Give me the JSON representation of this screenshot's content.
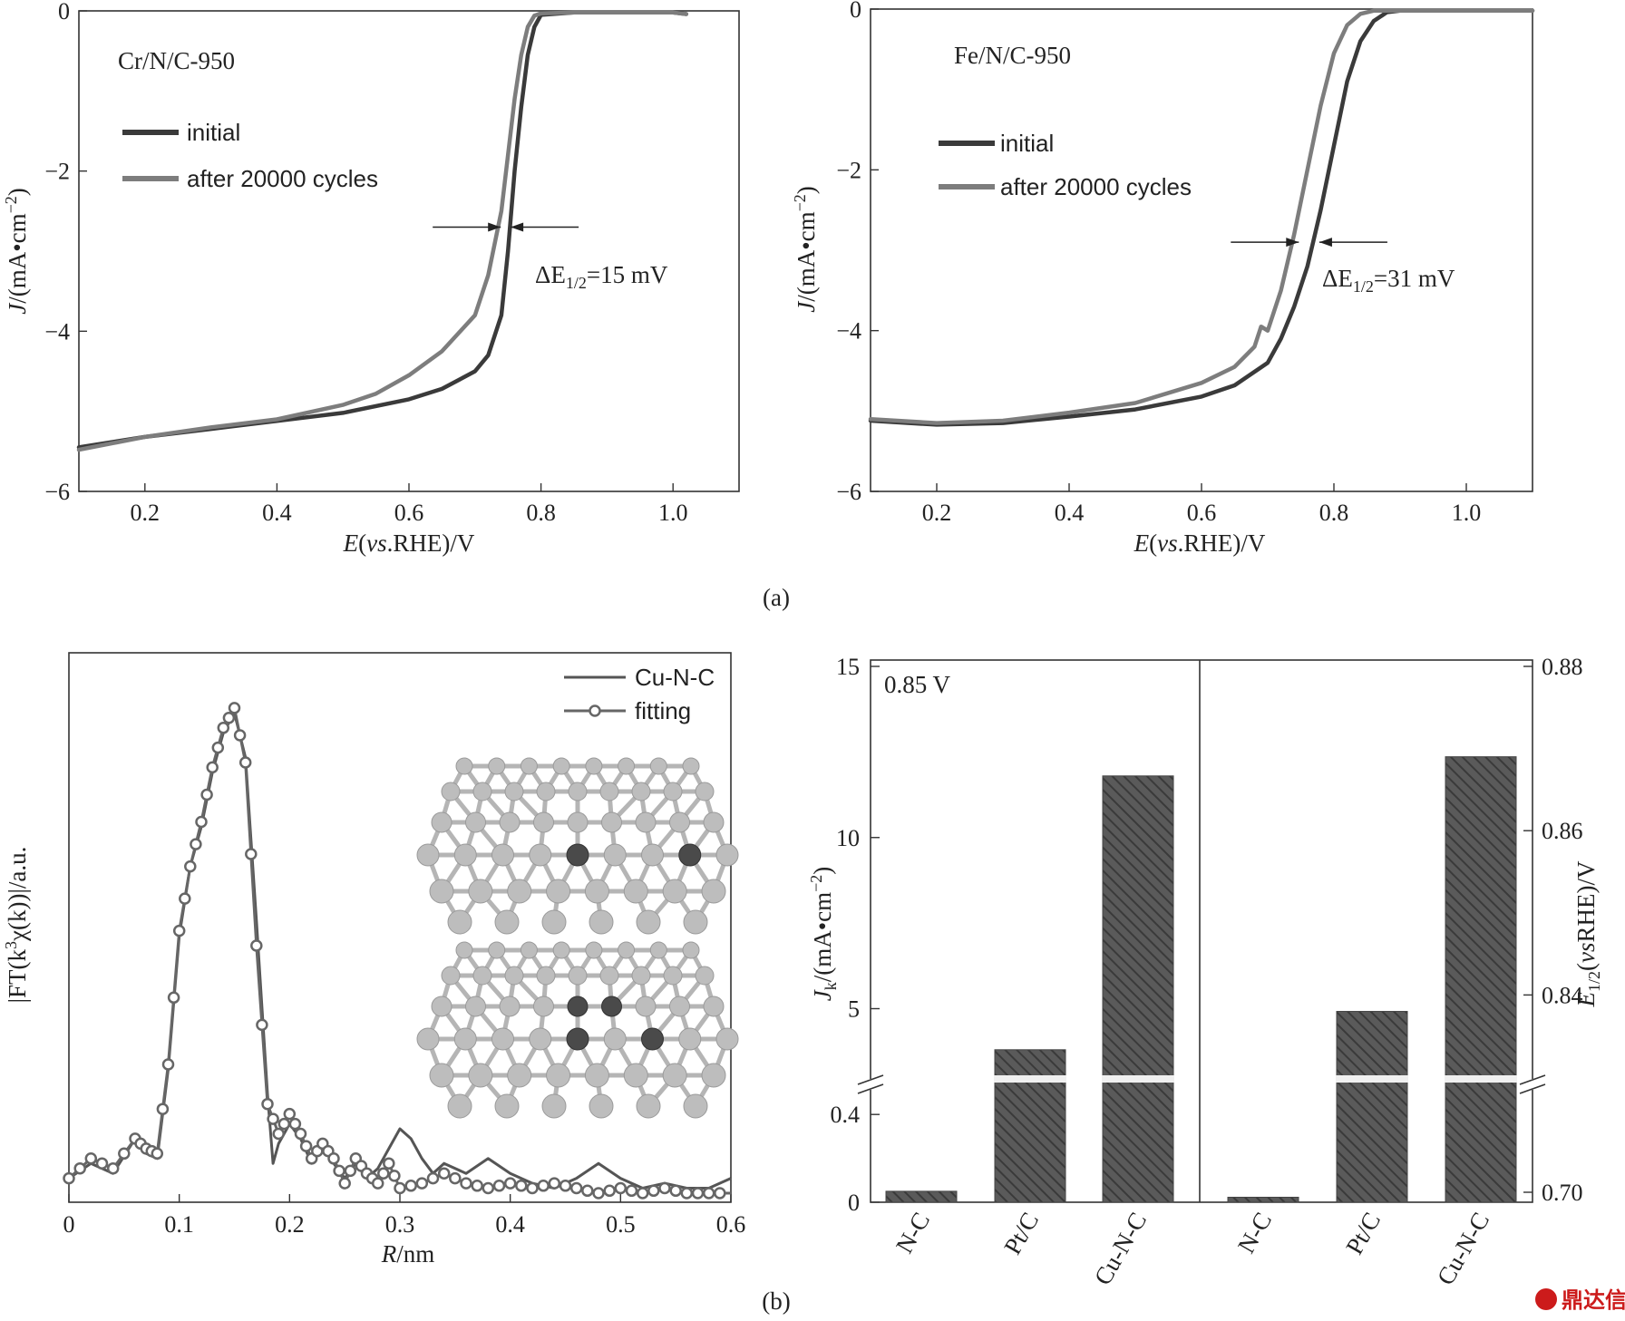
{
  "panel_labels": {
    "a": "(a)",
    "b": "(b)"
  },
  "watermark": "鼎达信",
  "chart_data": [
    {
      "type": "line",
      "panel": "a-left",
      "annotation_sample": "Cr/N/C-950",
      "xlabel_pre": "E",
      "xlabel_ital": "vs",
      "xlabel_post": ".RHE)/V",
      "ylabel_pre": "J",
      "ylabel_post": "/(mA•cm",
      "ylabel_sup": "−2",
      "xlim": [
        0.1,
        1.1
      ],
      "ylim": [
        -6,
        0
      ],
      "xticks": [
        0.2,
        0.4,
        0.6,
        0.8,
        1.0
      ],
      "xtick_labels": [
        "0.2",
        "0.4",
        "0.6",
        "0.8",
        "1.0"
      ],
      "yticks": [
        0,
        -2,
        -4,
        -6
      ],
      "ytick_labels": [
        "0",
        "−2",
        "−4",
        "−6"
      ],
      "legend": [
        "initial",
        "after 20000 cycles"
      ],
      "delta_label_pre": "ΔE",
      "delta_sub": "1/2",
      "delta_label_post": "=15 mV",
      "delta_arrow": {
        "y": -2.7,
        "x1": 0.739,
        "x2": 0.754
      },
      "series": [
        {
          "name": "initial",
          "color": "#3a3a3a",
          "x": [
            0.1,
            0.2,
            0.3,
            0.4,
            0.5,
            0.6,
            0.65,
            0.7,
            0.72,
            0.74,
            0.75,
            0.76,
            0.77,
            0.78,
            0.79,
            0.8,
            0.85,
            0.9,
            1.0,
            1.02
          ],
          "y": [
            -5.45,
            -5.32,
            -5.22,
            -5.12,
            -5.02,
            -4.85,
            -4.72,
            -4.5,
            -4.3,
            -3.8,
            -3.0,
            -2.0,
            -1.2,
            -0.55,
            -0.2,
            -0.05,
            -0.02,
            -0.02,
            -0.02,
            -0.04
          ]
        },
        {
          "name": "after 20000 cycles",
          "color": "#7d7d7d",
          "x": [
            0.1,
            0.2,
            0.3,
            0.4,
            0.5,
            0.55,
            0.6,
            0.65,
            0.7,
            0.72,
            0.74,
            0.75,
            0.76,
            0.77,
            0.78,
            0.79,
            0.8,
            0.85,
            0.9,
            1.0,
            1.02
          ],
          "y": [
            -5.48,
            -5.32,
            -5.2,
            -5.1,
            -4.92,
            -4.78,
            -4.55,
            -4.25,
            -3.8,
            -3.3,
            -2.5,
            -1.8,
            -1.1,
            -0.55,
            -0.2,
            -0.06,
            -0.03,
            -0.02,
            -0.02,
            -0.02,
            -0.04
          ]
        }
      ]
    },
    {
      "type": "line",
      "panel": "a-right",
      "annotation_sample": "Fe/N/C-950",
      "xlabel_pre": "E",
      "xlabel_ital": "vs",
      "xlabel_post": ".RHE)/V",
      "ylabel_pre": "J",
      "ylabel_post": "/(mA•cm",
      "ylabel_sup": "−2",
      "xlim": [
        0.1,
        1.1
      ],
      "ylim": [
        -6,
        0
      ],
      "xticks": [
        0.2,
        0.4,
        0.6,
        0.8,
        1.0
      ],
      "xtick_labels": [
        "0.2",
        "0.4",
        "0.6",
        "0.8",
        "1.0"
      ],
      "yticks": [
        0,
        -2,
        -4,
        -6
      ],
      "ytick_labels": [
        "0",
        "−2",
        "−4",
        "−6"
      ],
      "legend": [
        "initial",
        "after 20000 cycles"
      ],
      "delta_label_pre": "ΔE",
      "delta_sub": "1/2",
      "delta_label_post": "=31 mV",
      "delta_arrow": {
        "y": -2.9,
        "x1": 0.747,
        "x2": 0.778
      },
      "series": [
        {
          "name": "initial",
          "color": "#3a3a3a",
          "x": [
            0.1,
            0.2,
            0.3,
            0.4,
            0.5,
            0.6,
            0.65,
            0.7,
            0.72,
            0.74,
            0.76,
            0.78,
            0.8,
            0.82,
            0.84,
            0.86,
            0.88,
            0.9,
            1.0,
            1.1
          ],
          "y": [
            -5.12,
            -5.17,
            -5.15,
            -5.07,
            -4.98,
            -4.82,
            -4.68,
            -4.4,
            -4.1,
            -3.7,
            -3.2,
            -2.5,
            -1.7,
            -0.9,
            -0.4,
            -0.15,
            -0.04,
            -0.02,
            -0.02,
            -0.02
          ]
        },
        {
          "name": "after 20000 cycles",
          "color": "#7d7d7d",
          "x": [
            0.1,
            0.2,
            0.3,
            0.4,
            0.5,
            0.6,
            0.65,
            0.68,
            0.69,
            0.7,
            0.72,
            0.74,
            0.76,
            0.78,
            0.8,
            0.82,
            0.84,
            0.86,
            0.9,
            1.0,
            1.1
          ],
          "y": [
            -5.1,
            -5.15,
            -5.12,
            -5.02,
            -4.9,
            -4.65,
            -4.45,
            -4.2,
            -3.95,
            -4.0,
            -3.5,
            -2.8,
            -2.0,
            -1.2,
            -0.55,
            -0.2,
            -0.06,
            -0.02,
            -0.02,
            -0.02,
            -0.02
          ]
        }
      ]
    },
    {
      "type": "line",
      "panel": "b-left",
      "xlabel_pre": "R",
      "xlabel_post": "/nm",
      "ylabel_pre": "|FT(k",
      "ylabel_sup": "3",
      "ylabel_post": "χ(k))|/a.u.",
      "xlim": [
        0,
        0.6
      ],
      "ylim": [
        0,
        1
      ],
      "xticks": [
        0,
        0.1,
        0.2,
        0.3,
        0.4,
        0.5,
        0.6
      ],
      "xtick_labels": [
        "0",
        "0.1",
        "0.2",
        "0.3",
        "0.4",
        "0.5",
        "0.6"
      ],
      "legend": [
        "Cu-N-C",
        "fitting"
      ],
      "series": [
        {
          "name": "Cu-N-C",
          "color": "#555555",
          "markers": false,
          "x": [
            0.0,
            0.02,
            0.04,
            0.06,
            0.07,
            0.08,
            0.09,
            0.1,
            0.11,
            0.12,
            0.13,
            0.14,
            0.15,
            0.16,
            0.17,
            0.18,
            0.185,
            0.19,
            0.2,
            0.21,
            0.22,
            0.23,
            0.24,
            0.25,
            0.26,
            0.27,
            0.28,
            0.29,
            0.3,
            0.31,
            0.32,
            0.33,
            0.34,
            0.36,
            0.38,
            0.4,
            0.42,
            0.44,
            0.46,
            0.48,
            0.5,
            0.52,
            0.54,
            0.56,
            0.58,
            0.6
          ],
          "y": [
            0.03,
            0.06,
            0.04,
            0.11,
            0.08,
            0.07,
            0.25,
            0.52,
            0.66,
            0.74,
            0.85,
            0.93,
            0.97,
            0.88,
            0.55,
            0.2,
            0.06,
            0.1,
            0.14,
            0.11,
            0.06,
            0.1,
            0.06,
            0.03,
            0.06,
            0.03,
            0.05,
            0.09,
            0.13,
            0.11,
            0.07,
            0.04,
            0.06,
            0.04,
            0.07,
            0.04,
            0.02,
            0.01,
            0.03,
            0.06,
            0.03,
            0.01,
            0.02,
            0.01,
            0.01,
            0.03
          ]
        },
        {
          "name": "fitting",
          "color": "#666666",
          "markers": true,
          "x": [
            0.0,
            0.02,
            0.04,
            0.06,
            0.07,
            0.08,
            0.09,
            0.1,
            0.11,
            0.12,
            0.13,
            0.14,
            0.15,
            0.16,
            0.17,
            0.18,
            0.19,
            0.2,
            0.21,
            0.22,
            0.23,
            0.24,
            0.25,
            0.26,
            0.27,
            0.28,
            0.29,
            0.3,
            0.32,
            0.34,
            0.36,
            0.38,
            0.4,
            0.42,
            0.44,
            0.46,
            0.48,
            0.5,
            0.52,
            0.54,
            0.56,
            0.58,
            0.6
          ],
          "y": [
            0.03,
            0.07,
            0.05,
            0.11,
            0.09,
            0.08,
            0.26,
            0.53,
            0.66,
            0.75,
            0.86,
            0.94,
            0.98,
            0.87,
            0.5,
            0.18,
            0.12,
            0.16,
            0.12,
            0.07,
            0.1,
            0.07,
            0.02,
            0.07,
            0.04,
            0.02,
            0.06,
            0.01,
            0.02,
            0.04,
            0.02,
            0.01,
            0.02,
            0.01,
            0.02,
            0.01,
            0.0,
            0.01,
            0.0,
            0.01,
            0.0,
            0.0,
            0.0
          ]
        }
      ]
    },
    {
      "type": "bar",
      "panel": "b-right",
      "annotation_voltage": "0.85 V",
      "categories": [
        "N-C",
        "Pt/C",
        "Cu-N-C"
      ],
      "left_ylabel_pre": "J",
      "left_ylabel_sub": "k",
      "left_ylabel_post": "/(mA•cm",
      "left_ylabel_sup": "−2",
      "right_ylabel_pre": "E",
      "right_ylabel_sub": "1/2",
      "right_ylabel_ital": "vs",
      "right_ylabel_post": "RHE)/V",
      "left_axis": {
        "broken": true,
        "lower_range": [
          0,
          0.5
        ],
        "upper_range": [
          3,
          15
        ],
        "ticks": [
          0,
          0.4,
          5,
          10,
          15
        ],
        "tick_labels": [
          "0",
          "0.4",
          "5",
          "10",
          "15"
        ]
      },
      "right_axis": {
        "broken": true,
        "lower_range": [
          0.698,
          0.72
        ],
        "upper_range": [
          0.83,
          0.88
        ],
        "ticks": [
          0.7,
          0.84,
          0.86,
          0.88
        ],
        "tick_labels": [
          "0.70",
          "0.84",
          "0.86",
          "0.88"
        ]
      },
      "series": [
        {
          "name": "J_k",
          "values": [
            0.05,
            3.8,
            11.8
          ]
        },
        {
          "name": "E_1/2",
          "values": [
            0.699,
            0.838,
            0.869
          ]
        }
      ]
    }
  ]
}
